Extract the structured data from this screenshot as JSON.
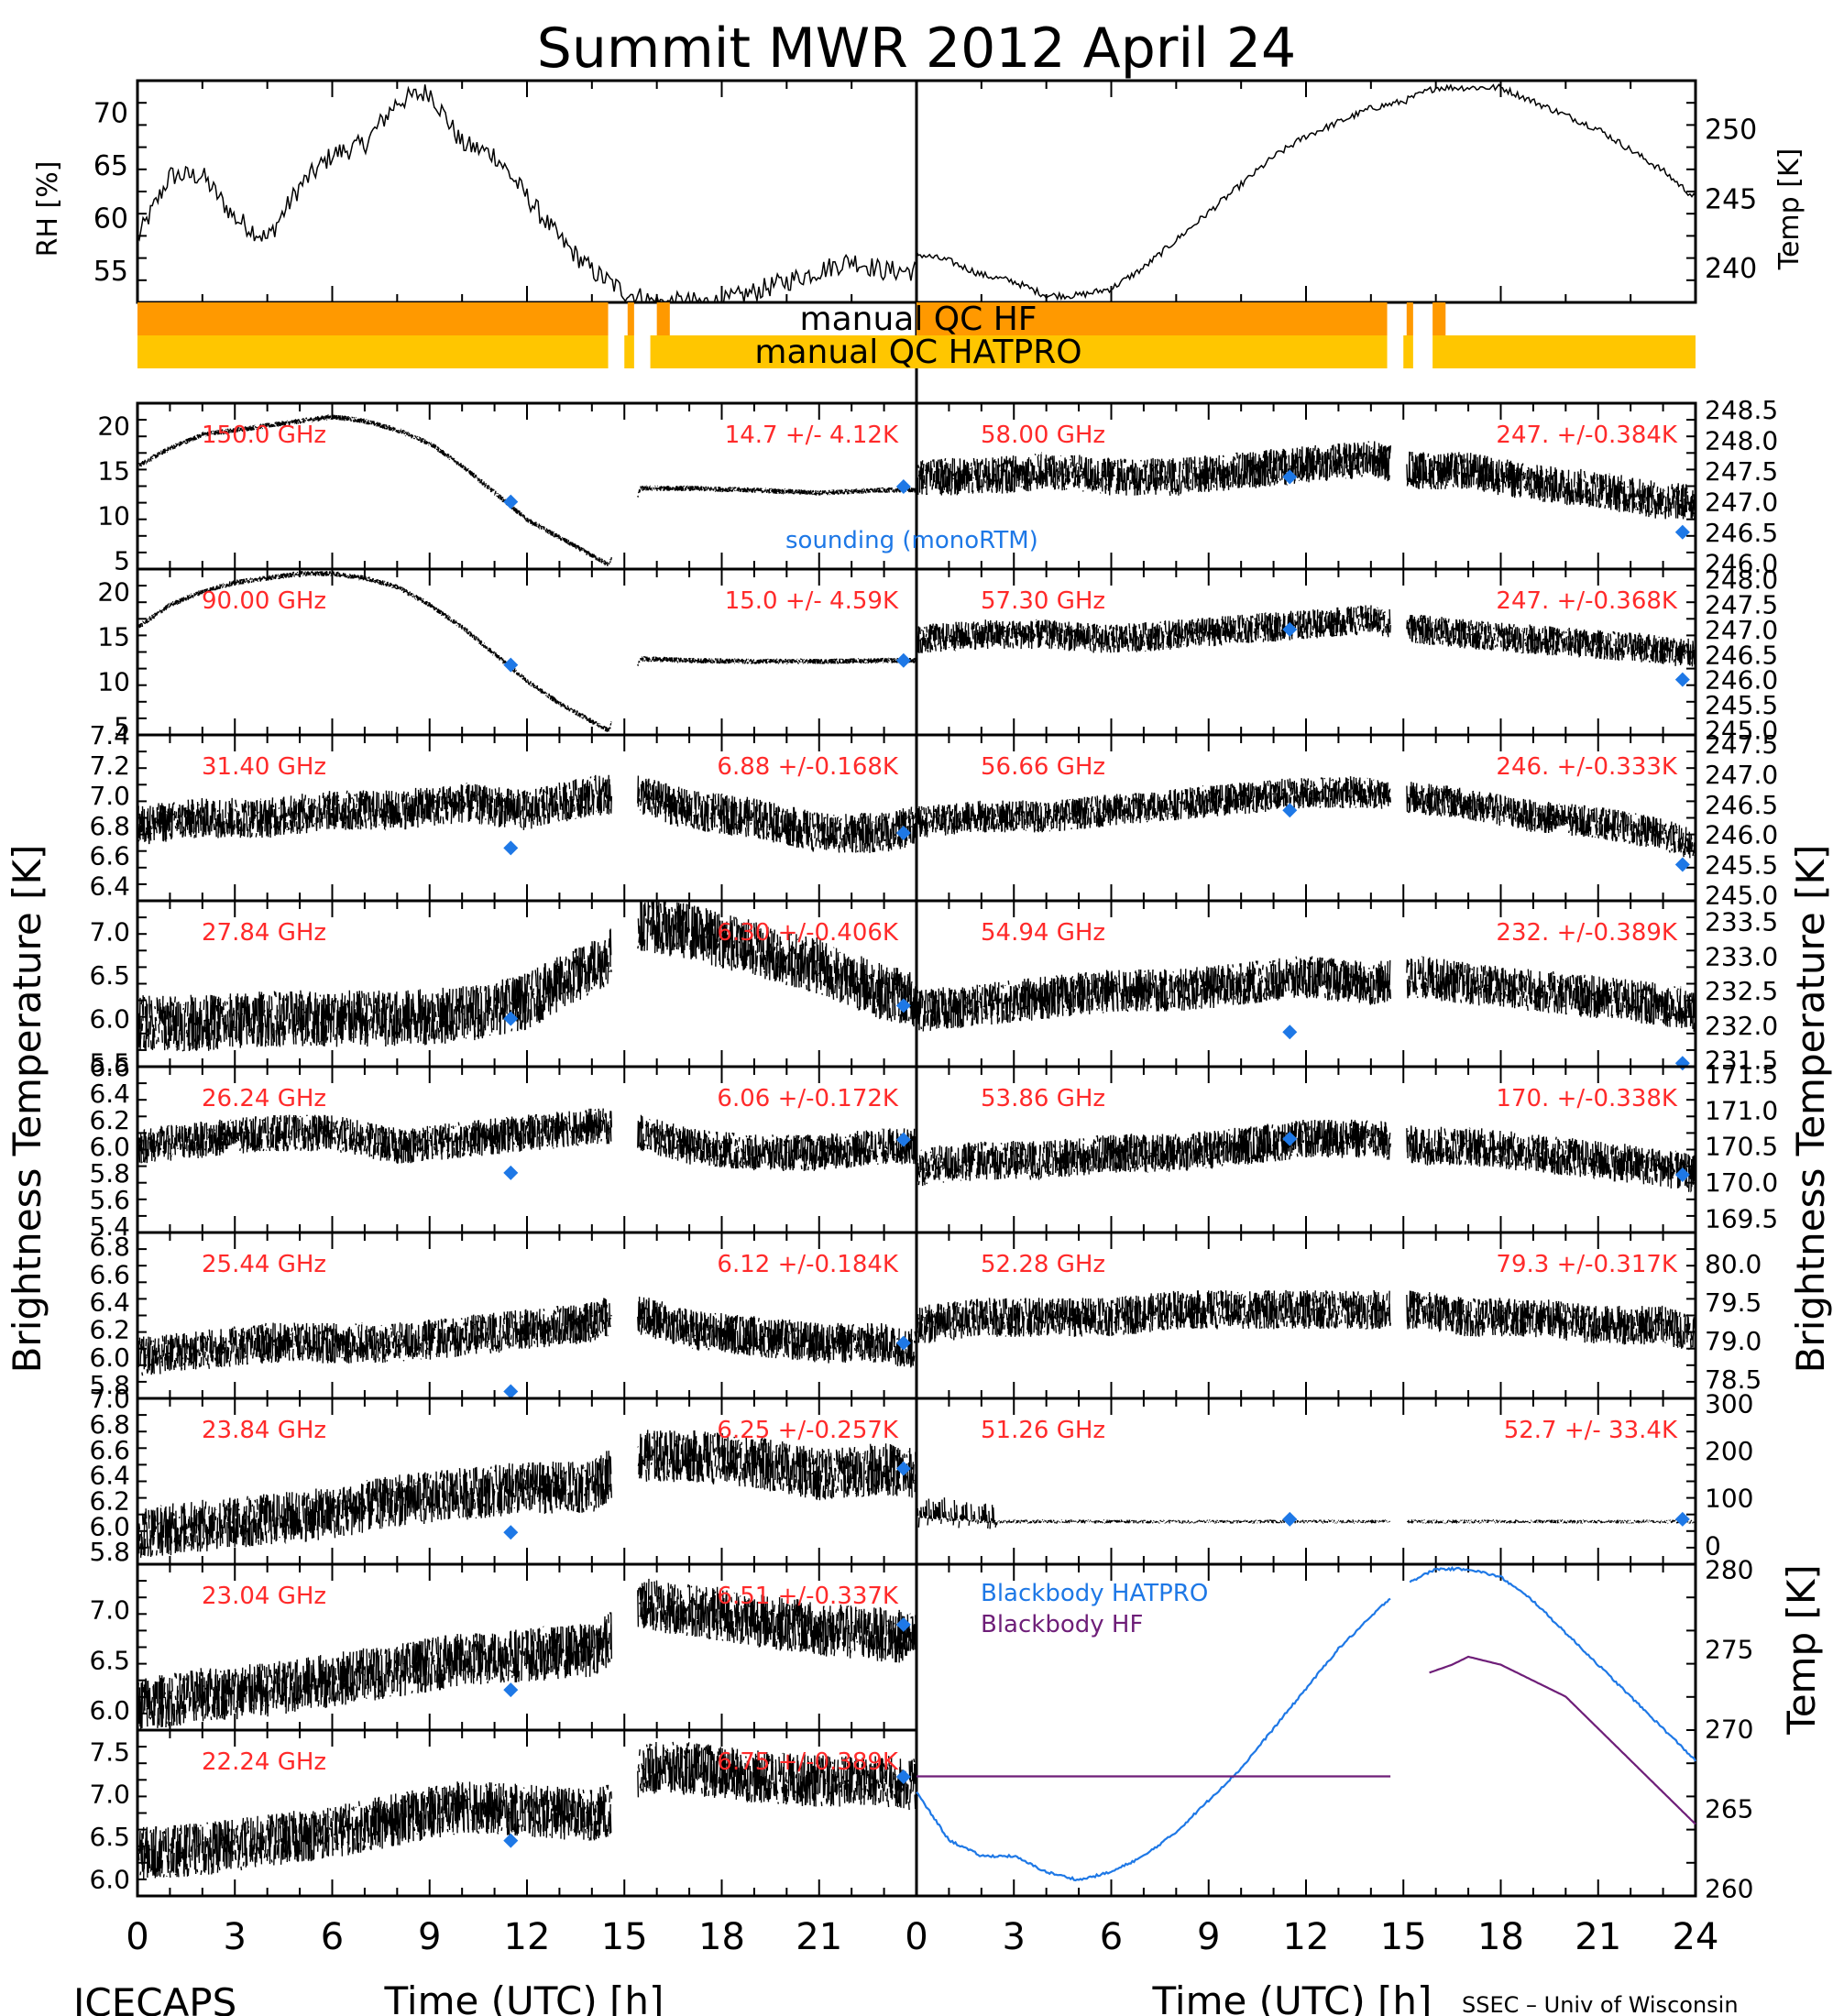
{
  "title": "Summit MWR 2012 April 24",
  "footer": {
    "left": "ICECAPS",
    "right": "SSEC – Univ of Wisconsin"
  },
  "axes": {
    "x_label": "Time (UTC) [h]",
    "left_xticks": [
      "0",
      "3",
      "6",
      "9",
      "12",
      "15",
      "18",
      "21"
    ],
    "right_xticks": [
      "0",
      "3",
      "6",
      "9",
      "12",
      "15",
      "18",
      "21",
      "24"
    ],
    "left_ylabel": "Brightness Temperature [K]",
    "right_ylabel": "Brightness Temperature [K]",
    "rh_label": "RH [%]",
    "temp_label": "Temp [K]"
  },
  "qc": {
    "hf_label": "manual QC HF",
    "hatpro_label": "manual QC HATPRO",
    "hf_color": "#FF9900",
    "hatpro_color": "#FFC600"
  },
  "annotation": {
    "sounding": "sounding (monoRTM)",
    "color": "#1E78E6"
  },
  "colors": {
    "data": "#000000",
    "label": "#FF2A2A",
    "sounding": "#1E78E6",
    "bb_hatpro": "#1E78E6",
    "bb_hf": "#6E1E78"
  },
  "chart_data": [
    {
      "type": "line",
      "panel": "top",
      "xlim": [
        0,
        24
      ],
      "series": [
        {
          "axis": "RH [%]",
          "ylim": [
            52,
            73
          ],
          "yticks": [
            "55",
            "60",
            "65",
            "70"
          ],
          "x": [
            0,
            1,
            2,
            3,
            4,
            5,
            6,
            7,
            8,
            9,
            10,
            11,
            12,
            13,
            14,
            15,
            16,
            17,
            18,
            19,
            20,
            21,
            22,
            23
          ],
          "values": [
            58,
            64,
            64,
            60,
            58,
            63,
            66,
            67,
            71,
            72,
            67,
            66,
            62,
            58,
            55,
            53,
            52,
            52,
            52,
            53,
            54,
            55,
            56,
            55
          ]
        },
        {
          "axis": "Temp [K]",
          "ylim": [
            237.5,
            253.5
          ],
          "yticks": [
            "240",
            "245",
            "250"
          ],
          "x": [
            0,
            1,
            2,
            3,
            4,
            5,
            6,
            7,
            8,
            9,
            10,
            11,
            12,
            13,
            14,
            15,
            16,
            17,
            18,
            19,
            20,
            21,
            22,
            23,
            24
          ],
          "values": [
            241,
            240.5,
            239.5,
            239,
            238,
            238,
            238.5,
            240,
            242,
            244,
            246,
            248,
            249.5,
            250.5,
            251.5,
            252,
            253,
            253,
            253,
            252,
            251,
            250,
            248.5,
            247,
            245
          ]
        }
      ]
    },
    {
      "type": "scatter",
      "channel": "150.0 GHz",
      "stats": "14.7 +/- 4.12K",
      "ylim": [
        4,
        22.5
      ],
      "yticks": [
        "5",
        "10",
        "15",
        "20"
      ],
      "x": [
        0,
        1,
        2,
        3,
        4,
        5,
        6,
        7,
        8,
        9,
        10,
        11,
        12,
        13,
        14,
        14.5,
        15.5,
        17,
        19,
        21,
        23,
        24
      ],
      "values": [
        15.5,
        17.5,
        19,
        19.5,
        20,
        20.5,
        21,
        20.5,
        19.5,
        18,
        15.5,
        12.5,
        9.5,
        7.5,
        5.5,
        4.5,
        13,
        13,
        12.8,
        12.5,
        12.8,
        12.8
      ],
      "sounding": [
        {
          "x": 11.5,
          "y": 11.5
        },
        {
          "x": 23.6,
          "y": 13.2
        }
      ]
    },
    {
      "type": "scatter",
      "channel": "90.00 GHz",
      "stats": "15.0 +/- 4.59K",
      "ylim": [
        4,
        22.5
      ],
      "yticks": [
        "5",
        "10",
        "15",
        "20"
      ],
      "x": [
        0,
        1,
        2,
        3,
        4,
        5,
        6,
        7,
        8,
        9,
        10,
        11,
        12,
        13,
        14,
        14.5,
        15.5,
        17,
        19,
        21,
        23,
        24
      ],
      "values": [
        16,
        18.5,
        20,
        21,
        21.5,
        22,
        22,
        21.5,
        20.5,
        18.5,
        16,
        13,
        10,
        7.5,
        5.5,
        4.5,
        12.5,
        12.3,
        12.2,
        12.2,
        12.3,
        12.3
      ],
      "sounding": [
        {
          "x": 11.5,
          "y": 11.8
        },
        {
          "x": 23.6,
          "y": 12.3
        }
      ]
    },
    {
      "type": "scatter",
      "channel": "31.40 GHz",
      "stats": "6.88 +/-0.168K",
      "ylim": [
        6.3,
        7.4
      ],
      "yticks": [
        "6.4",
        "6.6",
        "6.8",
        "7.0",
        "7.2",
        "7.4"
      ],
      "x": [
        0,
        2,
        4,
        6,
        8,
        10,
        12,
        14,
        14.5,
        15.5,
        17,
        19,
        21,
        23,
        24
      ],
      "values": [
        6.8,
        6.85,
        6.85,
        6.9,
        6.9,
        6.95,
        6.9,
        7.0,
        7.0,
        7.0,
        6.9,
        6.85,
        6.75,
        6.75,
        6.8
      ],
      "sounding": [
        {
          "x": 11.5,
          "y": 6.65
        },
        {
          "x": 23.6,
          "y": 6.75
        }
      ]
    },
    {
      "type": "scatter",
      "channel": "27.84 GHz",
      "stats": "6.30 +/-0.406K",
      "ylim": [
        5.45,
        7.35
      ],
      "yticks": [
        "5.5",
        "6.0",
        "6.5",
        "7.0"
      ],
      "x": [
        0,
        2,
        4,
        6,
        8,
        10,
        12,
        14,
        14.5,
        15.5,
        17,
        19,
        21,
        23,
        24
      ],
      "values": [
        5.95,
        5.95,
        6.0,
        6.0,
        6.0,
        6.05,
        6.2,
        6.6,
        6.7,
        7.1,
        7.0,
        6.8,
        6.6,
        6.3,
        6.2
      ],
      "sounding": [
        {
          "x": 11.5,
          "y": 6.0
        },
        {
          "x": 23.6,
          "y": 6.15
        }
      ]
    },
    {
      "type": "scatter",
      "channel": "26.24 GHz",
      "stats": "6.06 +/-0.172K",
      "ylim": [
        5.35,
        6.6
      ],
      "yticks": [
        "5.4",
        "5.6",
        "5.8",
        "6.0",
        "6.2",
        "6.4",
        "6.6"
      ],
      "x": [
        0,
        2,
        4,
        6,
        8,
        10,
        12,
        14,
        14.5,
        15.5,
        17,
        19,
        21,
        23,
        24
      ],
      "values": [
        6.0,
        6.05,
        6.1,
        6.1,
        6.0,
        6.05,
        6.1,
        6.15,
        6.15,
        6.1,
        6.0,
        5.95,
        5.95,
        6.0,
        6.0
      ],
      "sounding": [
        {
          "x": 11.5,
          "y": 5.8
        },
        {
          "x": 23.6,
          "y": 6.05
        }
      ]
    },
    {
      "type": "scatter",
      "channel": "25.44 GHz",
      "stats": "6.12 +/-0.184K",
      "ylim": [
        5.7,
        6.9
      ],
      "yticks": [
        "5.8",
        "6.0",
        "6.2",
        "6.4",
        "6.6",
        "6.8"
      ],
      "x": [
        0,
        2,
        4,
        6,
        8,
        10,
        12,
        14,
        14.5,
        15.5,
        17,
        19,
        21,
        23,
        24
      ],
      "values": [
        6.0,
        6.05,
        6.1,
        6.1,
        6.1,
        6.15,
        6.2,
        6.25,
        6.3,
        6.3,
        6.2,
        6.15,
        6.1,
        6.1,
        6.05
      ],
      "sounding": [
        {
          "x": 11.5,
          "y": 5.75
        },
        {
          "x": 23.6,
          "y": 6.1
        }
      ]
    },
    {
      "type": "scatter",
      "channel": "23.84 GHz",
      "stats": "6.25 +/-0.257K",
      "ylim": [
        5.7,
        7.0
      ],
      "yticks": [
        "5.8",
        "6.0",
        "6.2",
        "6.4",
        "6.6",
        "6.8",
        "7.0"
      ],
      "x": [
        0,
        2,
        4,
        6,
        8,
        10,
        12,
        14,
        14.5,
        15.5,
        17,
        19,
        21,
        23,
        24
      ],
      "values": [
        5.95,
        6.0,
        6.05,
        6.1,
        6.2,
        6.25,
        6.3,
        6.3,
        6.4,
        6.55,
        6.55,
        6.5,
        6.4,
        6.45,
        6.4
      ],
      "sounding": [
        {
          "x": 11.5,
          "y": 5.95
        },
        {
          "x": 23.6,
          "y": 6.45
        }
      ]
    },
    {
      "type": "scatter",
      "channel": "23.04 GHz",
      "stats": "6.51 +/-0.337K",
      "ylim": [
        5.8,
        7.45
      ],
      "yticks": [
        "6.0",
        "6.5",
        "7.0"
      ],
      "x": [
        0,
        2,
        4,
        6,
        8,
        10,
        12,
        14,
        14.5,
        15.5,
        17,
        19,
        21,
        23,
        24
      ],
      "values": [
        6.05,
        6.15,
        6.2,
        6.3,
        6.4,
        6.5,
        6.55,
        6.6,
        6.7,
        7.05,
        7.0,
        6.9,
        6.8,
        6.75,
        6.7
      ],
      "sounding": [
        {
          "x": 11.5,
          "y": 6.2
        },
        {
          "x": 23.6,
          "y": 6.85
        }
      ]
    },
    {
      "type": "scatter",
      "channel": "22.24 GHz",
      "stats": "6.75 +/-0.389K",
      "ylim": [
        5.8,
        7.75
      ],
      "yticks": [
        "6.0",
        "6.5",
        "7.0",
        "7.5"
      ],
      "x": [
        0,
        2,
        4,
        6,
        8,
        10,
        12,
        14,
        14.5,
        15.5,
        17,
        19,
        21,
        23,
        24
      ],
      "values": [
        6.3,
        6.35,
        6.45,
        6.55,
        6.7,
        6.85,
        6.8,
        6.75,
        6.8,
        7.3,
        7.3,
        7.2,
        7.15,
        7.15,
        7.1
      ],
      "sounding": [
        {
          "x": 11.5,
          "y": 6.45
        },
        {
          "x": 23.6,
          "y": 7.2
        }
      ]
    },
    {
      "type": "scatter",
      "channel": "58.00 GHz",
      "stats": "247. +/-0.384K",
      "ylim": [
        245.9,
        248.6
      ],
      "yticks": [
        "246.0",
        "246.5",
        "247.0",
        "247.5",
        "248.0",
        "248.5"
      ],
      "x": [
        0,
        2,
        4,
        6,
        8,
        10,
        12,
        14,
        15.5,
        17,
        19,
        21,
        23,
        24
      ],
      "values": [
        247.4,
        247.4,
        247.5,
        247.4,
        247.4,
        247.5,
        247.6,
        247.7,
        247.5,
        247.5,
        247.3,
        247.2,
        247.0,
        247.0
      ],
      "sounding": [
        {
          "x": 11.5,
          "y": 247.4
        },
        {
          "x": 23.6,
          "y": 246.5
        }
      ]
    },
    {
      "type": "scatter",
      "channel": "57.30 GHz",
      "stats": "247. +/-0.368K",
      "ylim": [
        244.9,
        248.2
      ],
      "yticks": [
        "245.0",
        "245.5",
        "246.0",
        "246.5",
        "247.0",
        "247.5",
        "248.0"
      ],
      "x": [
        0,
        2,
        4,
        6,
        8,
        10,
        12,
        14,
        15.5,
        17,
        19,
        21,
        23,
        24
      ],
      "values": [
        246.8,
        246.9,
        246.9,
        246.8,
        246.9,
        247.0,
        247.1,
        247.2,
        247.0,
        246.9,
        246.8,
        246.7,
        246.6,
        246.5
      ],
      "sounding": [
        {
          "x": 11.5,
          "y": 247.0
        },
        {
          "x": 23.6,
          "y": 246.0
        }
      ]
    },
    {
      "type": "scatter",
      "channel": "56.66 GHz",
      "stats": "246. +/-0.333K",
      "ylim": [
        244.9,
        247.65
      ],
      "yticks": [
        "245.0",
        "245.5",
        "246.0",
        "246.5",
        "247.0",
        "247.5"
      ],
      "x": [
        0,
        2,
        4,
        6,
        8,
        10,
        12,
        14,
        15.5,
        17,
        19,
        21,
        23,
        24
      ],
      "values": [
        246.2,
        246.3,
        246.3,
        246.4,
        246.5,
        246.6,
        246.7,
        246.7,
        246.6,
        246.5,
        246.3,
        246.2,
        246.0,
        245.8
      ],
      "sounding": [
        {
          "x": 11.5,
          "y": 246.4
        },
        {
          "x": 23.6,
          "y": 245.5
        }
      ]
    },
    {
      "type": "scatter",
      "channel": "54.94 GHz",
      "stats": "232. +/-0.389K",
      "ylim": [
        231.4,
        233.8
      ],
      "yticks": [
        "231.5",
        "232.0",
        "232.5",
        "233.0",
        "233.5"
      ],
      "x": [
        0,
        2,
        4,
        6,
        8,
        10,
        12,
        14,
        15.5,
        17,
        19,
        21,
        23,
        24
      ],
      "values": [
        232.2,
        232.3,
        232.4,
        232.5,
        232.5,
        232.6,
        232.7,
        232.6,
        232.7,
        232.6,
        232.5,
        232.4,
        232.3,
        232.2
      ],
      "sounding": [
        {
          "x": 11.5,
          "y": 231.9
        },
        {
          "x": 23.6,
          "y": 231.45
        }
      ]
    },
    {
      "type": "scatter",
      "channel": "53.86 GHz",
      "stats": "170. +/-0.338K",
      "ylim": [
        169.3,
        171.6
      ],
      "yticks": [
        "169.5",
        "170.0",
        "170.5",
        "171.0",
        "171.5"
      ],
      "x": [
        0,
        2,
        4,
        6,
        8,
        10,
        12,
        14,
        15.5,
        17,
        19,
        21,
        23,
        24
      ],
      "values": [
        170.2,
        170.3,
        170.3,
        170.4,
        170.4,
        170.5,
        170.6,
        170.6,
        170.5,
        170.5,
        170.4,
        170.3,
        170.2,
        170.1
      ],
      "sounding": [
        {
          "x": 11.5,
          "y": 170.6
        },
        {
          "x": 23.6,
          "y": 170.1
        }
      ]
    },
    {
      "type": "scatter",
      "channel": "52.28 GHz",
      "stats": "79.3 +/-0.317K",
      "ylim": [
        78.25,
        80.4
      ],
      "yticks": [
        "78.5",
        "79.0",
        "79.5",
        "80.0"
      ],
      "x": [
        0,
        2,
        4,
        6,
        8,
        10,
        12,
        14,
        15.5,
        17,
        19,
        21,
        23,
        24
      ],
      "values": [
        79.2,
        79.3,
        79.3,
        79.3,
        79.4,
        79.4,
        79.4,
        79.4,
        79.4,
        79.3,
        79.3,
        79.2,
        79.2,
        79.1
      ],
      "sounding": []
    },
    {
      "type": "scatter",
      "channel": "51.26 GHz",
      "stats": "52.7 +/- 33.4K",
      "ylim": [
        -40,
        310
      ],
      "yticks": [
        "0",
        "100",
        "200",
        "300"
      ],
      "x": [
        0,
        1,
        2,
        2.5,
        4,
        8,
        12,
        14,
        15.5,
        17,
        20,
        24
      ],
      "values": [
        60,
        55,
        50,
        50,
        50,
        50,
        50,
        50,
        50,
        50,
        50,
        50
      ],
      "sounding": [
        {
          "x": 11.5,
          "y": 55
        },
        {
          "x": 23.6,
          "y": 55
        }
      ]
    },
    {
      "type": "line",
      "panel": "blackbody",
      "xlim": [
        0,
        24
      ],
      "ylim": [
        259.5,
        280.3
      ],
      "yticks": [
        "260",
        "265",
        "270",
        "275",
        "280"
      ],
      "series": [
        {
          "name": "Blackbody HATPRO",
          "x": [
            0,
            1,
            2,
            3,
            4,
            5,
            6,
            7,
            8,
            9,
            10,
            11,
            12,
            13,
            14,
            15,
            16,
            17,
            18,
            19,
            20,
            21,
            22,
            23,
            24
          ],
          "values": [
            266,
            263,
            262,
            262,
            261,
            260.5,
            261,
            262,
            263.5,
            265.5,
            267.5,
            270,
            272.5,
            275,
            277,
            279,
            280,
            280,
            279.5,
            278,
            276,
            274,
            272,
            270,
            268
          ]
        },
        {
          "name": "Blackbody HF",
          "x": [
            0,
            2,
            4,
            6,
            8,
            10,
            12,
            14,
            15,
            15.8,
            16.5,
            17,
            18,
            19,
            20,
            21,
            22,
            23,
            24
          ],
          "values": [
            267,
            267,
            267,
            267,
            267,
            267,
            267,
            267,
            267,
            273.5,
            274,
            274.5,
            274,
            273,
            272,
            270,
            268,
            266,
            264
          ]
        }
      ]
    }
  ]
}
